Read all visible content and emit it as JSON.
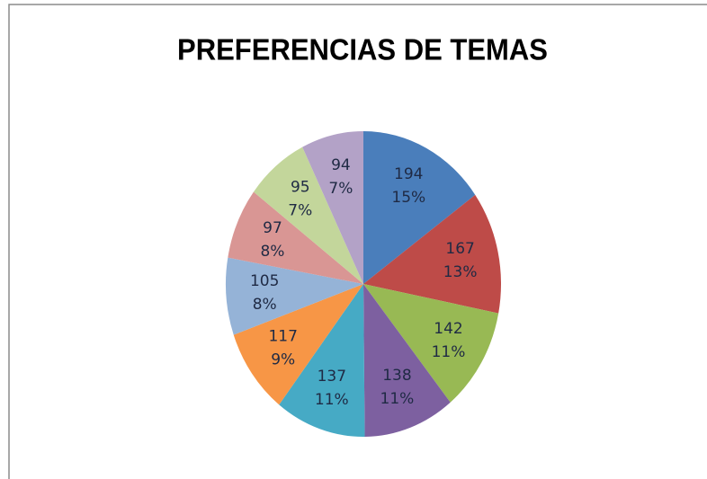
{
  "chart_data": {
    "type": "pie",
    "title": "PREFERENCIAS DE TEMAS",
    "values": [
      194,
      167,
      142,
      138,
      137,
      117,
      105,
      97,
      95,
      94
    ],
    "percentage_labels": [
      "15%",
      "13%",
      "11%",
      "11%",
      "11%",
      "9%",
      "8%",
      "8%",
      "7%",
      "7%"
    ],
    "colors": [
      "#4a7ebb",
      "#be4b48",
      "#98b954",
      "#7d60a0",
      "#46aac5",
      "#f79646",
      "#95b3d7",
      "#d99694",
      "#c3d69b",
      "#b3a2c7"
    ]
  }
}
